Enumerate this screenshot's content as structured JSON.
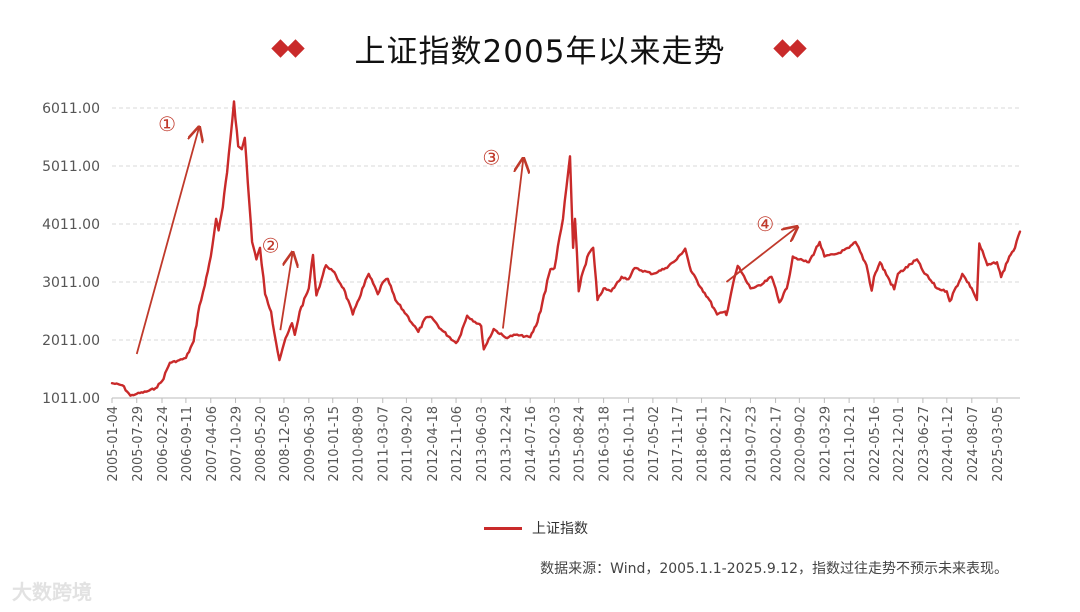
{
  "title": "上证指数2005年以来走势",
  "colors": {
    "series": "#c92a2a",
    "arrow": "#c0392b",
    "diamond": "#c92a2a",
    "grid": "#d9d9d9",
    "axis_text": "#555555"
  },
  "legend_label": "上证指数",
  "source_note": "数据来源：Wind，2005.1.1-2025.9.12，指数过往走势不预示未来表现。",
  "watermark": "大数跨境",
  "chart_data": {
    "type": "line",
    "title": "上证指数2005年以来走势",
    "xlabel": "",
    "ylabel": "",
    "ylim": [
      1011,
      6011
    ],
    "yticks": [
      1011,
      2011,
      3011,
      4011,
      5011,
      6011
    ],
    "ytick_labels": [
      "1011.00",
      "2011.00",
      "3011.00",
      "4011.00",
      "5011.00",
      "6011.00"
    ],
    "xtick_labels": [
      "2005-01-04",
      "2005-07-29",
      "2006-02-24",
      "2006-09-11",
      "2007-04-06",
      "2007-10-29",
      "2008-05-20",
      "2008-12-05",
      "2009-06-30",
      "2010-01-15",
      "2010-08-09",
      "2011-03-07",
      "2011-09-20",
      "2012-04-18",
      "2012-11-06",
      "2013-06-03",
      "2013-12-24",
      "2014-07-16",
      "2015-02-03",
      "2015-08-24",
      "2016-03-18",
      "2016-10-11",
      "2017-05-02",
      "2017-11-17",
      "2018-06-11",
      "2018-12-27",
      "2019-07-23",
      "2020-02-17",
      "2020-09-02",
      "2021-03-29",
      "2021-10-21",
      "2022-05-16",
      "2022-12-01",
      "2023-06-27",
      "2024-01-12",
      "2024-08-07",
      "2025-03-05"
    ],
    "grid": true,
    "legend_position": "bottom",
    "series": [
      {
        "name": "上证指数",
        "x": [
          "2005-01-04",
          "2005-04-01",
          "2005-06-06",
          "2005-07-29",
          "2005-10-15",
          "2006-01-01",
          "2006-02-24",
          "2006-05-01",
          "2006-07-01",
          "2006-09-11",
          "2006-11-15",
          "2007-01-01",
          "2007-02-15",
          "2007-04-06",
          "2007-05-20",
          "2007-06-10",
          "2007-07-15",
          "2007-08-20",
          "2007-10-16",
          "2007-11-20",
          "2007-12-20",
          "2008-01-14",
          "2008-02-20",
          "2008-03-15",
          "2008-04-20",
          "2008-05-20",
          "2008-07-01",
          "2008-08-20",
          "2008-10-28",
          "2008-12-05",
          "2009-02-10",
          "2009-03-05",
          "2009-04-15",
          "2009-06-30",
          "2009-08-04",
          "2009-09-01",
          "2009-11-20",
          "2010-01-15",
          "2010-04-15",
          "2010-07-01",
          "2010-08-09",
          "2010-11-10",
          "2011-01-25",
          "2011-03-07",
          "2011-04-18",
          "2011-06-20",
          "2011-09-20",
          "2011-12-28",
          "2012-03-01",
          "2012-04-18",
          "2012-07-01",
          "2012-11-06",
          "2012-12-03",
          "2013-02-06",
          "2013-06-03",
          "2013-06-25",
          "2013-09-15",
          "2013-12-24",
          "2014-03-15",
          "2014-07-16",
          "2014-09-15",
          "2014-12-31",
          "2015-02-03",
          "2015-04-15",
          "2015-06-12",
          "2015-07-08",
          "2015-07-24",
          "2015-08-24",
          "2015-09-15",
          "2015-11-15",
          "2015-12-22",
          "2016-01-27",
          "2016-03-18",
          "2016-05-20",
          "2016-08-15",
          "2016-10-11",
          "2016-12-01",
          "2017-05-02",
          "2017-08-15",
          "2017-11-17",
          "2018-01-26",
          "2018-03-15",
          "2018-06-11",
          "2018-08-15",
          "2018-10-18",
          "2018-12-27",
          "2019-01-04",
          "2019-02-25",
          "2019-04-08",
          "2019-07-23",
          "2019-10-15",
          "2020-01-14",
          "2020-02-17",
          "2020-03-19",
          "2020-05-20",
          "2020-07-09",
          "2020-09-02",
          "2020-11-20",
          "2021-02-18",
          "2021-03-29",
          "2021-07-15",
          "2021-10-21",
          "2021-12-13",
          "2022-03-15",
          "2022-04-27",
          "2022-05-16",
          "2022-07-05",
          "2022-10-31",
          "2022-12-01",
          "2023-05-09",
          "2023-06-27",
          "2023-10-23",
          "2024-01-12",
          "2024-02-05",
          "2024-05-20",
          "2024-08-07",
          "2024-09-18",
          "2024-10-08",
          "2024-12-15",
          "2025-03-05",
          "2025-04-08",
          "2025-06-15",
          "2025-08-01",
          "2025-09-12"
        ],
        "values": [
          1266,
          1230,
          1051,
          1083,
          1120,
          1180,
          1300,
          1620,
          1650,
          1700,
          1990,
          2600,
          2950,
          3450,
          4100,
          3900,
          4300,
          4900,
          6124,
          5350,
          5300,
          5497,
          4400,
          3700,
          3400,
          3600,
          2800,
          2500,
          1664,
          1950,
          2300,
          2100,
          2500,
          2900,
          3478,
          2780,
          3300,
          3200,
          2900,
          2450,
          2670,
          3150,
          2800,
          3000,
          3067,
          2700,
          2450,
          2150,
          2400,
          2400,
          2200,
          1960,
          2050,
          2430,
          2250,
          1849,
          2200,
          2050,
          2100,
          2060,
          2320,
          3230,
          3250,
          4100,
          5178,
          3600,
          4100,
          2850,
          3100,
          3500,
          3600,
          2700,
          2900,
          2850,
          3100,
          3060,
          3250,
          3150,
          3250,
          3400,
          3587,
          3200,
          2900,
          2700,
          2450,
          2500,
          2440,
          2950,
          3288,
          2900,
          2950,
          3100,
          2900,
          2660,
          2900,
          3450,
          3400,
          3350,
          3700,
          3450,
          3500,
          3600,
          3700,
          3300,
          2863,
          3100,
          3350,
          2886,
          3150,
          3400,
          3200,
          2900,
          2850,
          2680,
          3150,
          2900,
          2700,
          3674,
          3300,
          3350,
          3096,
          3450,
          3600,
          3880
        ]
      }
    ],
    "annotations": [
      {
        "label": "①",
        "from_x": "2005-07-29",
        "from_y": 1770,
        "to_x": "2006-12-30",
        "to_y": 5680
      },
      {
        "label": "②",
        "from_x": "2008-11-05",
        "from_y": 2180,
        "to_x": "2009-02-15",
        "to_y": 3520
      },
      {
        "label": "③",
        "from_x": "2013-12-01",
        "from_y": 2210,
        "to_x": "2014-05-20",
        "to_y": 5140
      },
      {
        "label": "④",
        "from_x": "2019-01-04",
        "from_y": 3011,
        "to_x": "2020-08-15",
        "to_y": 3960
      }
    ]
  }
}
